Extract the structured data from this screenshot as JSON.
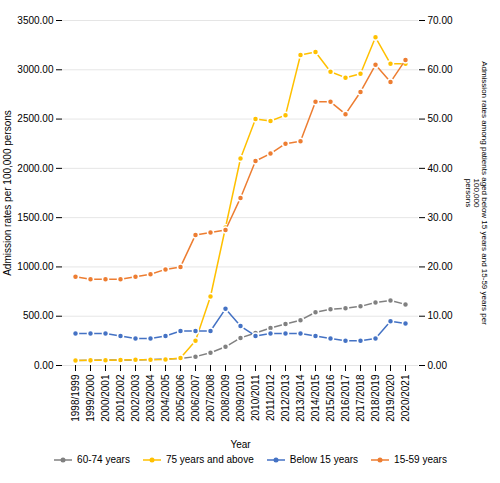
{
  "chart_data": {
    "type": "line",
    "xlabel": "Year",
    "ylabel": "Admission rates per 100,000 persons",
    "y2label": "Admission rates among patients aged below 15 years and 15-59 years per 100,000\npersons",
    "categories": [
      "1998/1999",
      "1999/2000",
      "2000/2001",
      "2001/2002",
      "2002/2003",
      "2003/2004",
      "2004/2005",
      "2005/2006",
      "2006/2007",
      "2007/2008",
      "2008/2009",
      "2009/2010",
      "2010/2011",
      "2011/2012",
      "2012/2013",
      "2013/2014",
      "2014/2015",
      "2015/2016",
      "2016/2017",
      "2017/2018",
      "2018/2019",
      "2019/2020",
      "2020/2021"
    ],
    "series": [
      {
        "name": "60-74 years",
        "color": "#808080",
        "axis": "y",
        "marker": "circle",
        "values": [
          50,
          52,
          55,
          55,
          55,
          60,
          65,
          70,
          90,
          130,
          190,
          280,
          330,
          380,
          420,
          460,
          540,
          570,
          580,
          600,
          640,
          660,
          620
        ]
      },
      {
        "name": "75 years and above",
        "color": "#FFC000",
        "axis": "y",
        "marker": "circle",
        "values": [
          50,
          52,
          54,
          56,
          58,
          58,
          60,
          75,
          250,
          700,
          1400,
          2100,
          2500,
          2480,
          2540,
          3150,
          3180,
          2980,
          2920,
          2960,
          3330,
          3060,
          3060
        ]
      },
      {
        "name": "Below 15 years",
        "color": "#4472C4",
        "axis": "y2",
        "marker": "circle",
        "values": [
          6.5,
          6.5,
          6.5,
          6.0,
          5.5,
          5.5,
          6.0,
          7.0,
          7.0,
          7.0,
          11.5,
          8.0,
          6.0,
          6.5,
          6.5,
          6.5,
          6.0,
          5.5,
          5.0,
          5.0,
          5.5,
          9.0,
          8.5
        ]
      },
      {
        "name": "15-59 years",
        "color": "#ED7D31",
        "axis": "y2",
        "marker": "circle",
        "values": [
          18.0,
          17.5,
          17.5,
          17.5,
          18.0,
          18.5,
          19.5,
          20.0,
          26.5,
          27.0,
          27.5,
          34.0,
          41.5,
          43.0,
          45.0,
          45.5,
          53.5,
          53.5,
          51.0,
          55.5,
          61.0,
          57.5,
          62.0
        ]
      }
    ],
    "ylim": [
      0,
      3500
    ],
    "yticks": [
      {
        "value": 0,
        "label": "0.00"
      },
      {
        "value": 500,
        "label": "500.00"
      },
      {
        "value": 1000,
        "label": "1000.00"
      },
      {
        "value": 1500,
        "label": "1500.00"
      },
      {
        "value": 2000,
        "label": "2000.00"
      },
      {
        "value": 2500,
        "label": "2500.00"
      },
      {
        "value": 3000,
        "label": "3000.00"
      },
      {
        "value": 3500,
        "label": "3500.00"
      }
    ],
    "y2lim": [
      0,
      70
    ],
    "y2ticks": [
      {
        "value": 0,
        "label": "0.00"
      },
      {
        "value": 10,
        "label": "10.00"
      },
      {
        "value": 20,
        "label": "20.00"
      },
      {
        "value": 30,
        "label": "30.00"
      },
      {
        "value": 40,
        "label": "40.00"
      },
      {
        "value": 50,
        "label": "50.00"
      },
      {
        "value": 60,
        "label": "60.00"
      },
      {
        "value": 70,
        "label": "70.00"
      }
    ],
    "grid": true,
    "legend": "bottom"
  }
}
